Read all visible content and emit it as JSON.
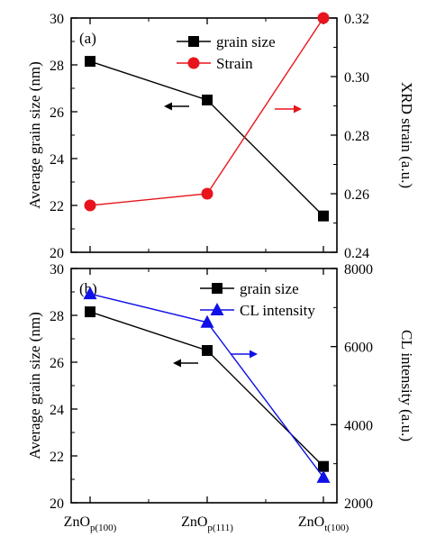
{
  "chart_data": [
    {
      "panel": "(a)",
      "type": "line",
      "categories": [
        "ZnO_p(100)",
        "ZnO_p(111)",
        "ZnO_t(100)"
      ],
      "y_axes": {
        "left": {
          "label": "Average grain size (nm)",
          "ylim": [
            20,
            30
          ],
          "ticks": [
            20,
            22,
            24,
            26,
            28,
            30
          ]
        },
        "right": {
          "label": "XRD strain (a.u.)",
          "ylim": [
            0.24,
            0.32
          ],
          "ticks": [
            0.24,
            0.26,
            0.28,
            0.3,
            0.32
          ]
        }
      },
      "series": [
        {
          "name": "grain size",
          "axis": "left",
          "marker": "square",
          "color": "#000000",
          "values": [
            28.15,
            26.5,
            21.55
          ]
        },
        {
          "name": "Strain",
          "axis": "right",
          "marker": "circle",
          "color": "#e8141c",
          "values": [
            0.256,
            0.26,
            0.32
          ]
        }
      ],
      "legend_position": "top-center",
      "grid": false,
      "annotations": [
        "left arrow pointing to grain size axis",
        "right arrow pointing to strain axis"
      ]
    },
    {
      "panel": "(b)",
      "type": "line",
      "categories": [
        "ZnO_p(100)",
        "ZnO_p(111)",
        "ZnO_t(100)"
      ],
      "y_axes": {
        "left": {
          "label": "Average grain size (nm)",
          "ylim": [
            20,
            30
          ],
          "ticks": [
            20,
            22,
            24,
            26,
            28,
            30
          ]
        },
        "right": {
          "label": "CL intensity (a.u.)",
          "ylim": [
            2000,
            8000
          ],
          "ticks": [
            2000,
            4000,
            6000,
            8000
          ]
        }
      },
      "series": [
        {
          "name": "grain size",
          "axis": "left",
          "marker": "square",
          "color": "#000000",
          "values": [
            28.15,
            26.5,
            21.55
          ]
        },
        {
          "name": "CL intensity",
          "axis": "right",
          "marker": "triangle",
          "color": "#1010e8",
          "values": [
            7350,
            6620,
            2650
          ]
        }
      ],
      "legend_position": "top-center",
      "grid": false,
      "annotations": [
        "left arrow pointing to grain size axis",
        "right arrow pointing to CL intensity axis"
      ]
    }
  ],
  "x_categories": [
    {
      "base": "ZnO",
      "sub": "p(100)"
    },
    {
      "base": "ZnO",
      "sub": "p(111)"
    },
    {
      "base": "ZnO",
      "sub": "t(100)"
    }
  ]
}
